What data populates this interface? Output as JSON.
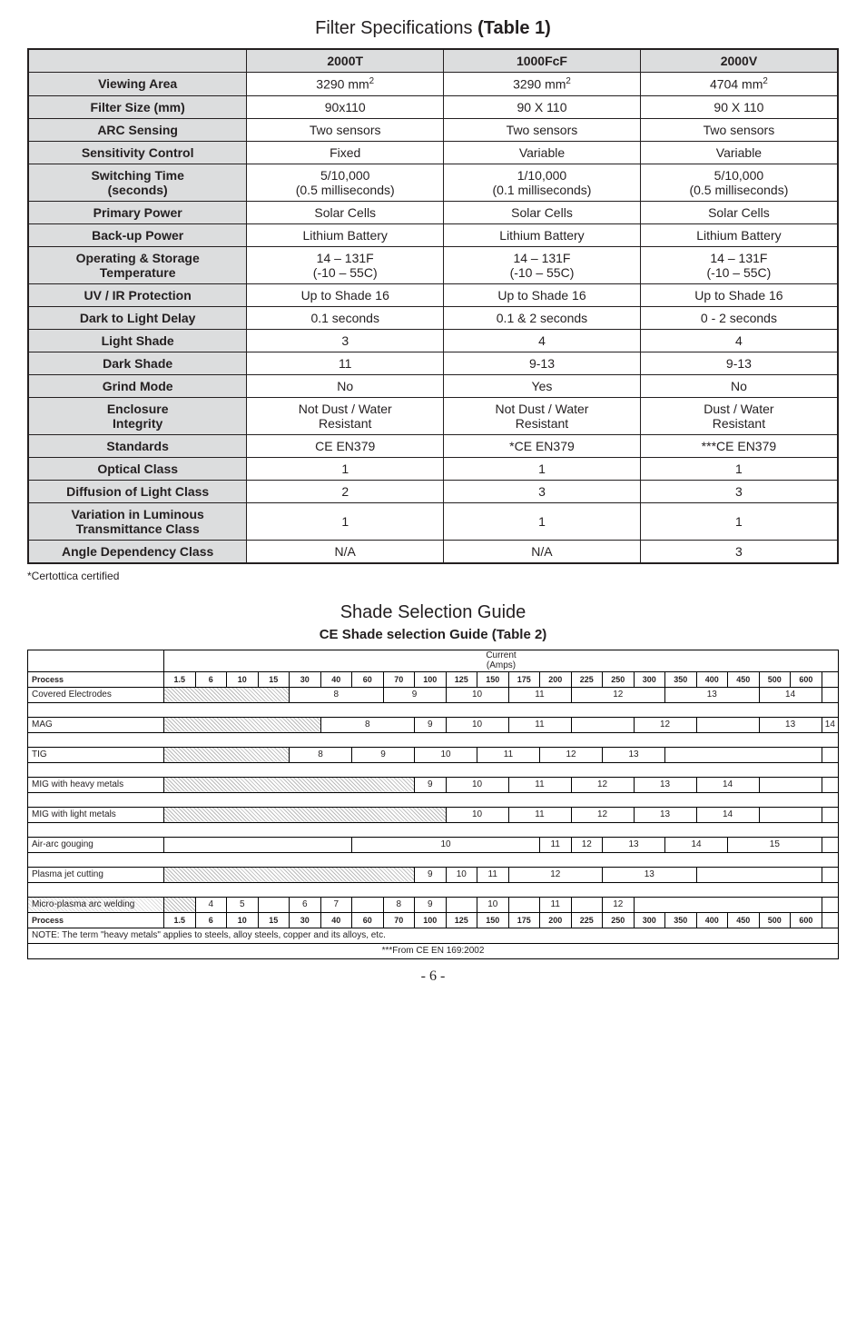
{
  "title1_main": "Filter Specifications",
  "title1_sub": "(Table 1)",
  "spec_headers": [
    "",
    "2000T",
    "1000FcF",
    "2000V"
  ],
  "spec_rows": [
    {
      "label": "Viewing Area",
      "c1": "3290 mm²",
      "c2": "3290 mm²",
      "c3": "4704 mm²"
    },
    {
      "label": "Filter Size (mm)",
      "c1": "90x110",
      "c2": "90 X 110",
      "c3": "90 X 110"
    },
    {
      "label": "ARC Sensing",
      "c1": "Two sensors",
      "c2": "Two sensors",
      "c3": "Two sensors"
    },
    {
      "label": "Sensitivity Control",
      "c1": "Fixed",
      "c2": "Variable",
      "c3": "Variable"
    },
    {
      "label": "Switching Time\n(seconds)",
      "c1": "5/10,000\n(0.5 milliseconds)",
      "c2": "1/10,000\n(0.1 milliseconds)",
      "c3": "5/10,000\n(0.5 milliseconds)"
    },
    {
      "label": "Primary Power",
      "c1": "Solar Cells",
      "c2": "Solar Cells",
      "c3": "Solar Cells"
    },
    {
      "label": "Back-up Power",
      "c1": "Lithium Battery",
      "c2": "Lithium Battery",
      "c3": "Lithium Battery"
    },
    {
      "label": "Operating & Storage\nTemperature",
      "c1": "14 – 131F\n(-10 – 55C)",
      "c2": "14 – 131F\n(-10 – 55C)",
      "c3": "14 – 131F\n(-10 – 55C)"
    },
    {
      "label": "UV / IR Protection",
      "c1": "Up to Shade 16",
      "c2": "Up to Shade 16",
      "c3": "Up to Shade 16"
    },
    {
      "label": "Dark to Light Delay",
      "c1": "0.1 seconds",
      "c2": "0.1 & 2 seconds",
      "c3": "0 - 2 seconds"
    },
    {
      "label": "Light Shade",
      "c1": "3",
      "c2": "4",
      "c3": "4"
    },
    {
      "label": "Dark Shade",
      "c1": "11",
      "c2": "9-13",
      "c3": "9-13"
    },
    {
      "label": "Grind Mode",
      "c1": "No",
      "c2": "Yes",
      "c3": "No"
    },
    {
      "label": "Enclosure\nIntegrity",
      "c1": "Not Dust / Water\nResistant",
      "c2": "Not Dust / Water\nResistant",
      "c3": "Dust / Water\nResistant"
    },
    {
      "label": "Standards",
      "c1": "CE EN379",
      "c2": "*CE EN379",
      "c3": "***CE EN379"
    },
    {
      "label": "Optical Class",
      "c1": "1",
      "c2": "1",
      "c3": "1"
    },
    {
      "label": "Diffusion of Light Class",
      "c1": "2",
      "c2": "3",
      "c3": "3"
    },
    {
      "label": "Variation in Luminous\nTransmittance Class",
      "c1": "1",
      "c2": "1",
      "c3": "1"
    },
    {
      "label": "Angle Dependency Class",
      "c1": "N/A",
      "c2": "N/A",
      "c3": "3"
    }
  ],
  "footnote": "*Certottica certified",
  "title2": "Shade Selection Guide",
  "title2sub": "CE Shade selection Guide (Table 2)",
  "amps_header_top": "Current\n(Amps)",
  "amps_process": "Process",
  "amps_values": [
    "1.5",
    "6",
    "10",
    "15",
    "30",
    "40",
    "60",
    "70",
    "100",
    "125",
    "150",
    "175",
    "200",
    "225",
    "250",
    "300",
    "350",
    "400",
    "450",
    "500",
    "600"
  ],
  "shade_rows": [
    {
      "proc": "Covered Electrodes",
      "hatch": [
        0,
        4
      ],
      "segs": [
        [
          4,
          7,
          "8"
        ],
        [
          7,
          9,
          "9"
        ],
        [
          9,
          11,
          "10"
        ],
        [
          11,
          13,
          "11"
        ],
        [
          13,
          16,
          "12"
        ],
        [
          16,
          19,
          "13"
        ],
        [
          19,
          21,
          "14"
        ]
      ]
    },
    {
      "proc": "MAG",
      "hatch": [
        0,
        5
      ],
      "segs": [
        [
          5,
          8,
          "8"
        ],
        [
          8,
          9,
          "9"
        ],
        [
          9,
          11,
          "10"
        ],
        [
          11,
          13,
          "11"
        ],
        [
          13,
          15,
          " "
        ],
        [
          15,
          17,
          "12"
        ],
        [
          17,
          19,
          " "
        ],
        [
          19,
          21,
          "13"
        ]
      ],
      "extra": "14"
    },
    {
      "proc": "TIG",
      "hatch": [
        0,
        4
      ],
      "segs": [
        [
          4,
          6,
          "8"
        ],
        [
          6,
          8,
          "9"
        ],
        [
          8,
          10,
          "10"
        ],
        [
          10,
          12,
          "11"
        ],
        [
          12,
          14,
          "12"
        ],
        [
          14,
          16,
          "13"
        ],
        [
          16,
          21,
          ""
        ]
      ]
    },
    {
      "proc": "MIG with heavy metals",
      "hatch": [
        0,
        8
      ],
      "segs": [
        [
          8,
          9,
          "9"
        ],
        [
          9,
          11,
          "10"
        ],
        [
          11,
          13,
          "11"
        ],
        [
          13,
          15,
          "12"
        ],
        [
          15,
          17,
          "13"
        ],
        [
          17,
          19,
          "14"
        ],
        [
          19,
          21,
          ""
        ]
      ]
    },
    {
      "proc": "MIG with light metals",
      "hatch": [
        0,
        9
      ],
      "segs": [
        [
          9,
          11,
          "10"
        ],
        [
          11,
          13,
          "11"
        ],
        [
          13,
          15,
          "12"
        ],
        [
          15,
          17,
          "13"
        ],
        [
          17,
          19,
          "14"
        ],
        [
          19,
          21,
          ""
        ]
      ]
    },
    {
      "proc": "Air-arc gouging",
      "hatch": [
        0,
        0
      ],
      "segs": [
        [
          0,
          6,
          ""
        ],
        [
          6,
          12,
          "10"
        ],
        [
          12,
          13,
          "11"
        ],
        [
          13,
          14,
          "12"
        ],
        [
          14,
          16,
          "13"
        ],
        [
          16,
          18,
          "14"
        ],
        [
          18,
          21,
          "15"
        ]
      ]
    },
    {
      "proc": "Plasma jet cutting",
      "hatch": [
        0,
        8
      ],
      "segs": [
        [
          8,
          9,
          "9"
        ],
        [
          9,
          10,
          "10"
        ],
        [
          10,
          11,
          "11"
        ],
        [
          11,
          14,
          "12"
        ],
        [
          14,
          17,
          "13"
        ],
        [
          17,
          21,
          ""
        ]
      ]
    },
    {
      "proc": "Micro-plasma arc welding",
      "hatch": [
        0,
        1
      ],
      "segs": [
        [
          1,
          2,
          "4"
        ],
        [
          2,
          3,
          "5"
        ],
        [
          3,
          4,
          ""
        ],
        [
          4,
          5,
          "6"
        ],
        [
          5,
          6,
          "7"
        ],
        [
          6,
          7,
          ""
        ],
        [
          7,
          8,
          "8"
        ],
        [
          8,
          9,
          "9"
        ],
        [
          9,
          10,
          ""
        ],
        [
          10,
          11,
          "10"
        ],
        [
          11,
          12,
          ""
        ],
        [
          12,
          13,
          "11"
        ],
        [
          13,
          14,
          ""
        ],
        [
          14,
          15,
          "12"
        ],
        [
          15,
          21,
          ""
        ]
      ]
    }
  ],
  "note_row": "NOTE: The term \"heavy metals\" applies to steels, alloy steels, copper and its alloys, etc.",
  "source_row": "***From CE EN 169:2002",
  "pagenum": "- 6 -"
}
